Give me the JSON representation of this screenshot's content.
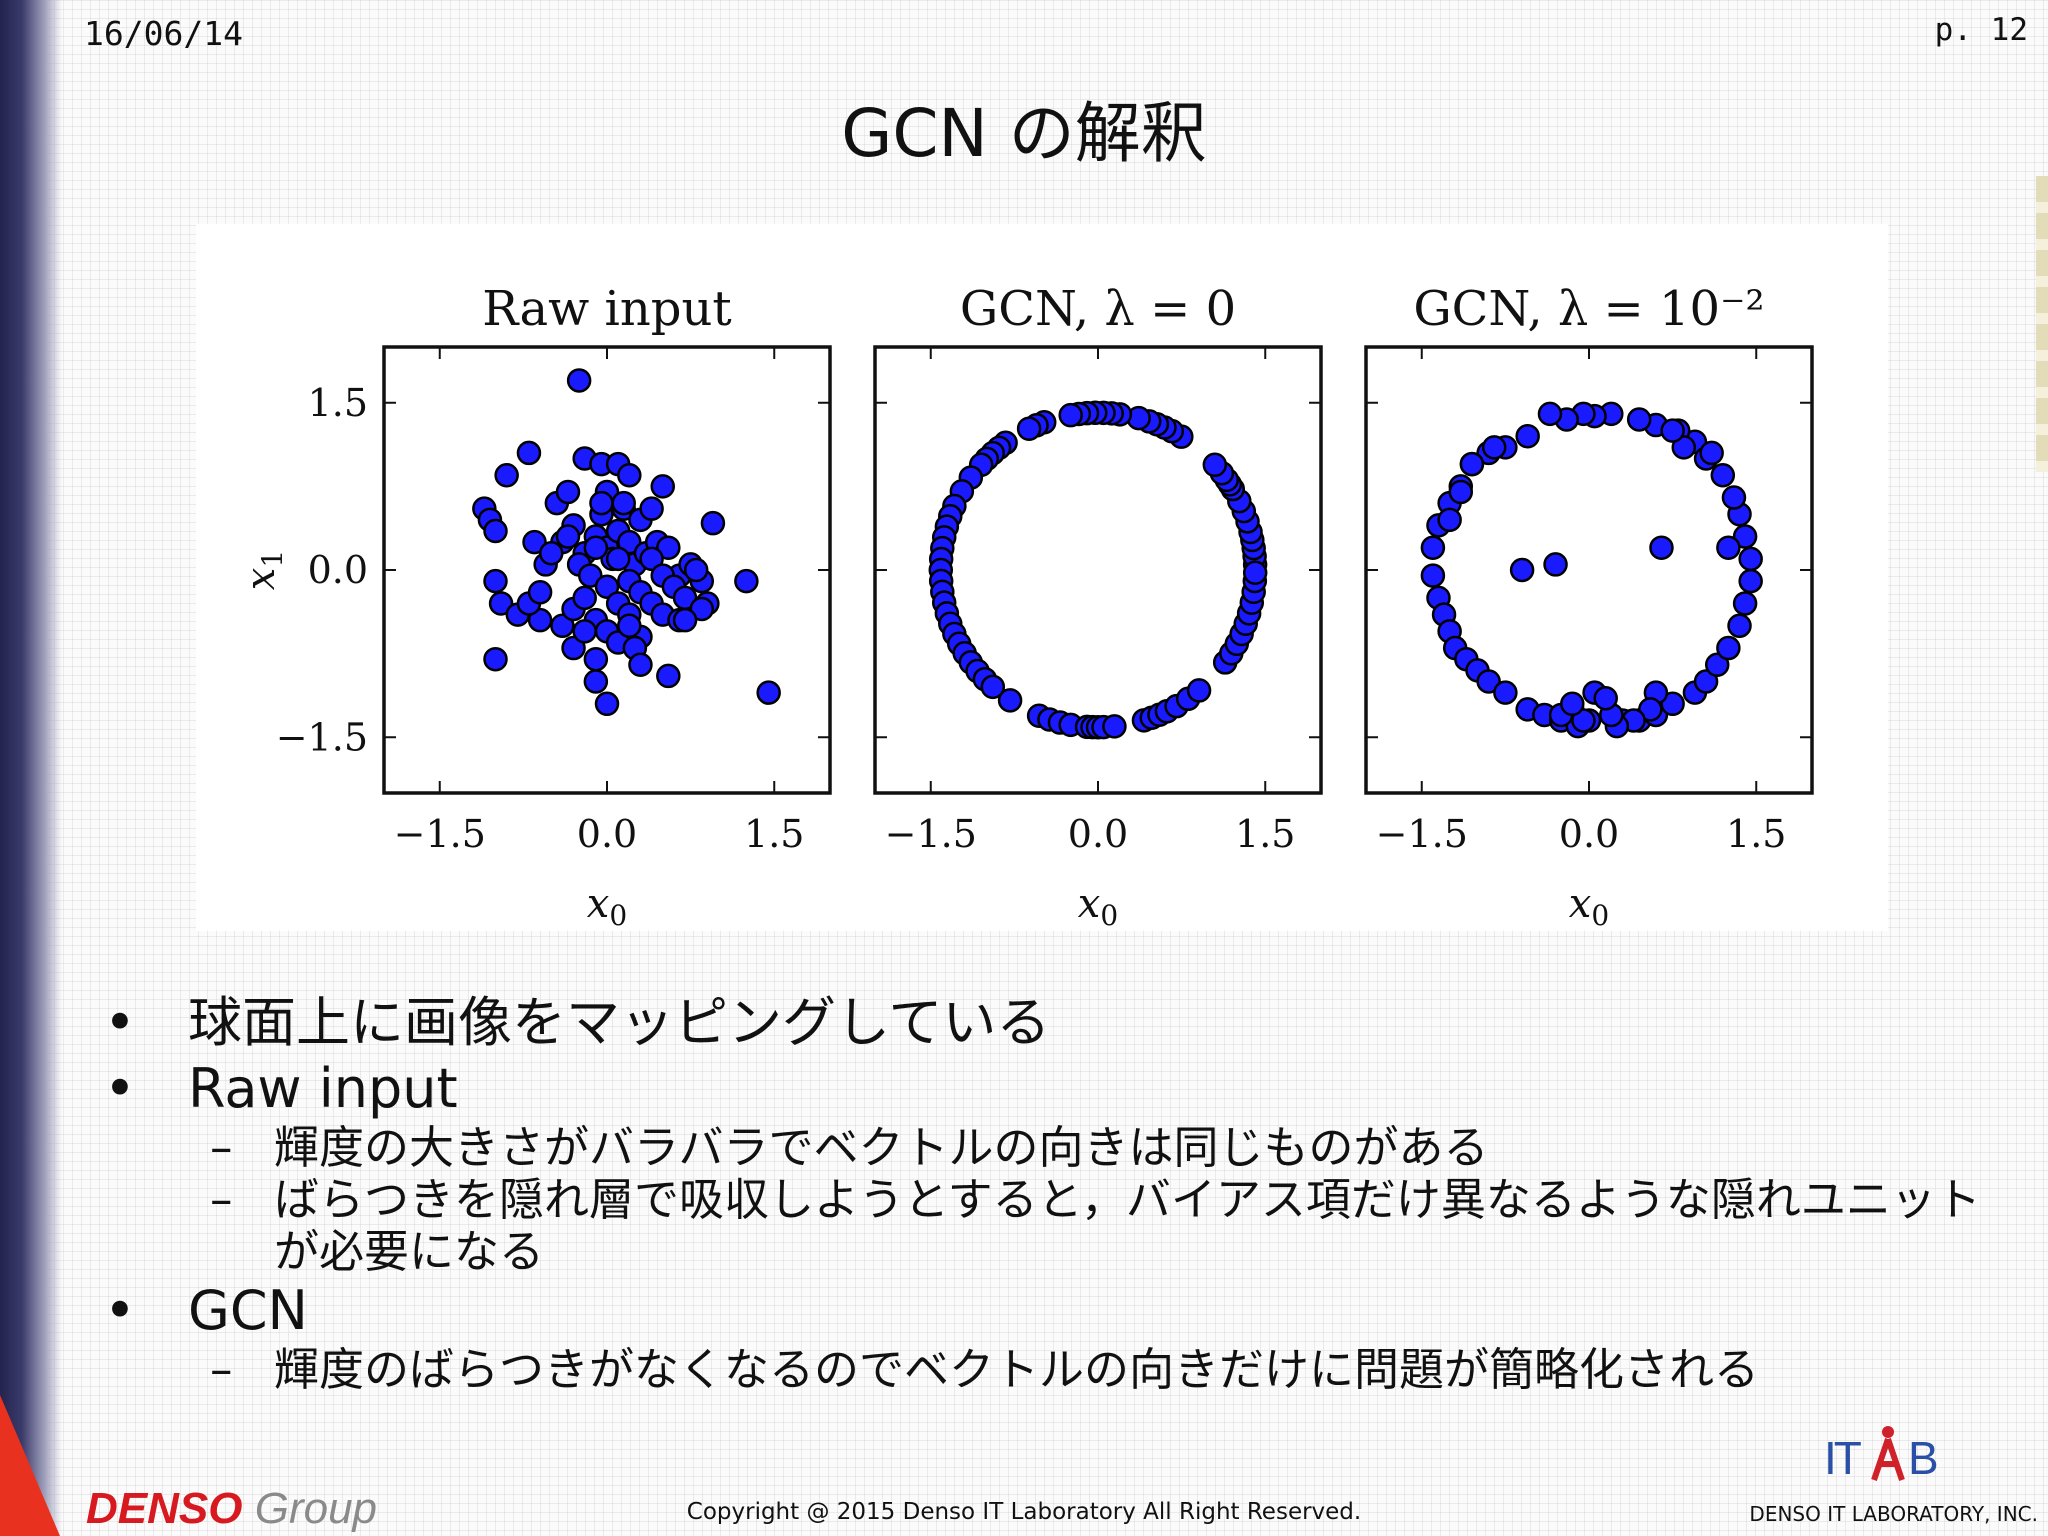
{
  "slide": {
    "date": "16/06/14",
    "page": "p.  12",
    "title": "GCN の解釈"
  },
  "bullets": [
    {
      "level": 1,
      "text": "球面上に画像をマッピングしている"
    },
    {
      "level": 1,
      "text": "Raw input"
    },
    {
      "level": 2,
      "text": "輝度の大きさがバラバラでベクトルの向きは同じものがある"
    },
    {
      "level": 2,
      "text": "ばらつきを隠れ層で吸収しようとすると，バイアス項だけ異なるような隠れユニットが必要になる"
    },
    {
      "level": 1,
      "text": "GCN"
    },
    {
      "level": 2,
      "text": "輝度のばらつきがなくなるのでベクトルの向きだけに問題が簡略化される"
    }
  ],
  "bullet_glyphs": {
    "level1": "•",
    "level2": "–"
  },
  "footer": {
    "brand": "DENSO",
    "group": "Group",
    "copyright": "Copyright @ 2015 Denso IT Laboratory All Right Reserved.",
    "company": "DENSO IT LABORATORY, INC.",
    "logo_text": "ITLAB"
  },
  "colors": {
    "marker_fill": "#1a1aff",
    "marker_edge": "#000000",
    "brand_red": "#d71920",
    "logo_blue": "#2a4fa6",
    "logo_red": "#d0202a"
  },
  "chart_data": [
    {
      "type": "scatter",
      "title": "Raw input",
      "xlabel": "x0",
      "ylabel": "x1",
      "xlim": [
        -2,
        2
      ],
      "ylim": [
        -2,
        2
      ],
      "xticks": [
        -1.5,
        0.0,
        1.5
      ],
      "yticks": [
        -1.5,
        0.0,
        1.5
      ],
      "xtick_labels": [
        "−1.5",
        "0.0",
        "1.5"
      ],
      "ytick_labels": [
        "−1.5",
        "0.0",
        "1.5"
      ],
      "x": [
        -0.25,
        -0.7,
        -0.9,
        -1.1,
        -1.05,
        -1.0,
        -0.2,
        -0.05,
        0.0,
        0.1,
        0.2,
        0.5,
        0.95,
        1.25,
        1.45,
        -1.0,
        -0.95,
        -0.6,
        -0.4,
        -0.3,
        -0.2,
        -0.1,
        -0.05,
        0.0,
        0.05,
        0.1,
        0.15,
        0.2,
        0.25,
        0.3,
        0.35,
        0.45,
        0.55,
        0.65,
        0.75,
        0.85,
        -0.65,
        -0.55,
        -0.5,
        -0.45,
        -0.35,
        -0.25,
        -0.15,
        -0.1,
        0.0,
        0.1,
        0.2,
        0.3,
        0.4,
        0.5,
        0.6,
        0.7,
        0.8,
        0.9,
        -0.8,
        -0.7,
        -0.6,
        -0.4,
        -0.3,
        -0.2,
        -0.1,
        0.0,
        0.1,
        0.2,
        0.3,
        0.4,
        0.5,
        0.65,
        0.85,
        -0.3,
        -0.2,
        -0.1,
        0.1,
        0.2,
        0.25,
        0.3,
        0.55,
        -1.0,
        -0.1,
        0.7,
        0.0,
        -0.05,
        0.15,
        0.4,
        -0.35
      ],
      "y": [
        1.7,
        1.05,
        0.85,
        0.55,
        0.45,
        0.35,
        1.0,
        0.95,
        0.7,
        0.95,
        0.85,
        0.75,
        0.42,
        -0.1,
        -1.1,
        -0.1,
        -0.3,
        -0.45,
        0.25,
        0.4,
        0.15,
        0.3,
        0.5,
        0.2,
        0.1,
        0.35,
        0.55,
        0.25,
        0.05,
        0.45,
        0.15,
        0.25,
        0.2,
        -0.05,
        0.05,
        -0.1,
        0.25,
        0.05,
        0.15,
        0.6,
        0.3,
        0.05,
        -0.05,
        0.2,
        -0.15,
        0.1,
        -0.1,
        -0.2,
        0.1,
        -0.05,
        -0.15,
        -0.25,
        0.0,
        -0.3,
        -0.4,
        -0.3,
        -0.2,
        -0.5,
        -0.35,
        -0.25,
        -0.45,
        -0.55,
        -0.3,
        -0.4,
        -0.6,
        -0.3,
        -0.4,
        -0.45,
        -0.35,
        -0.7,
        -0.55,
        -0.8,
        -0.65,
        -0.5,
        -0.7,
        -0.85,
        -0.95,
        -0.8,
        -1.0,
        -0.45,
        -1.2,
        0.6,
        0.6,
        0.55,
        0.7
      ]
    },
    {
      "type": "scatter",
      "title": "GCN, λ = 0",
      "xlabel": "x0",
      "ylabel": "",
      "xlim": [
        -2,
        2
      ],
      "ylim": [
        -2,
        2
      ],
      "xticks": [
        -1.5,
        0.0,
        1.5
      ],
      "yticks": [
        -1.5,
        0.0,
        1.5
      ],
      "xtick_labels": [
        "−1.5",
        "0.0",
        "1.5"
      ],
      "ytick_labels": [],
      "radius": 1.41,
      "angles_deg": [
        2,
        5,
        8,
        11,
        14,
        18,
        22,
        26,
        31,
        33,
        35,
        38,
        42,
        58,
        62,
        65,
        68,
        71,
        75,
        82,
        85,
        88,
        91,
        94,
        97,
        100,
        110,
        113,
        116,
        126,
        129,
        132,
        135,
        138,
        144,
        150,
        156,
        160,
        164,
        168,
        172,
        176,
        180,
        184,
        188,
        192,
        196,
        200,
        204,
        208,
        212,
        216,
        220,
        224,
        228,
        236,
        248,
        252,
        256,
        260,
        266,
        268,
        270,
        272,
        276,
        287,
        290,
        293,
        296,
        300,
        305,
        310,
        324,
        328,
        332,
        336,
        340,
        344,
        348,
        352,
        356,
        359
      ]
    },
    {
      "type": "scatter",
      "title": "GCN, λ = 10⁻²",
      "xlabel": "x0",
      "ylabel": "",
      "xlim": [
        -2,
        2
      ],
      "ylim": [
        -2,
        2
      ],
      "xticks": [
        -1.5,
        0.0,
        1.5
      ],
      "yticks": [
        -1.5,
        0.0,
        1.5
      ],
      "xtick_labels": [
        "−1.5",
        "0.0",
        "1.5"
      ],
      "ytick_labels": [],
      "x": [
        0.95,
        0.8,
        0.6,
        0.45,
        0.2,
        0.05,
        -0.05,
        -0.2,
        -0.35,
        -0.55,
        -0.75,
        -0.9,
        -1.05,
        -1.15,
        -1.25,
        -1.35,
        -1.4,
        -1.4,
        -1.35,
        -1.3,
        -1.25,
        -1.2,
        -1.1,
        -1.0,
        -0.9,
        -0.75,
        -0.55,
        -0.4,
        -0.25,
        -0.1,
        0.0,
        0.3,
        0.45,
        0.6,
        0.75,
        0.95,
        1.05,
        1.15,
        1.25,
        1.35,
        1.4,
        1.45,
        1.45,
        1.4,
        1.35,
        1.3,
        1.2,
        1.05,
        0.65,
        0.6,
        -0.3,
        -0.6,
        0.55,
        0.4,
        0.25,
        0.2,
        -0.15,
        -0.25,
        -0.05,
        -0.15,
        0.05,
        0.15,
        0.85,
        0.75,
        1.25,
        1.1,
        -1.25,
        -1.15,
        -1.05,
        -0.85
      ],
      "y": [
        1.15,
        1.25,
        1.3,
        1.35,
        1.4,
        1.38,
        1.4,
        1.35,
        1.4,
        1.2,
        1.1,
        1.05,
        0.95,
        0.75,
        0.6,
        0.4,
        0.2,
        -0.05,
        -0.25,
        -0.4,
        -0.55,
        -0.7,
        -0.8,
        -0.9,
        -1.0,
        -1.1,
        -1.25,
        -1.3,
        -1.35,
        -1.4,
        -1.35,
        -1.35,
        -1.35,
        -1.3,
        -1.2,
        -1.1,
        -1.0,
        -0.85,
        -0.7,
        -0.5,
        -0.3,
        -0.1,
        0.1,
        0.3,
        0.5,
        0.65,
        0.85,
        1.0,
        0.2,
        -1.1,
        0.05,
        0.0,
        -1.25,
        -1.35,
        -1.4,
        -1.3,
        -1.25,
        -1.3,
        -1.35,
        -1.2,
        -1.1,
        -1.15,
        1.1,
        1.25,
        0.2,
        1.05,
        0.45,
        0.7,
        0.95,
        1.1
      ]
    }
  ]
}
